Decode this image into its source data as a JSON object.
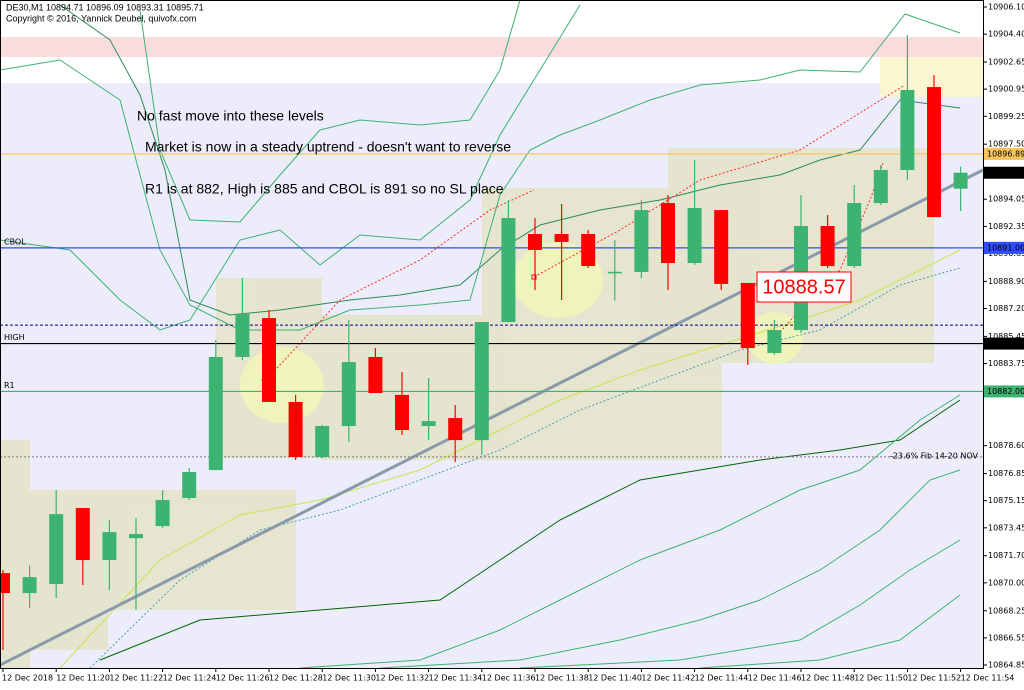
{
  "chart_data": {
    "type": "candlestick",
    "title": "DE30,M1  10894.71 10896.09 10893.31 10895.71",
    "subtitle": "Copyright © 2016, Yannick Deubel, quivofx.com",
    "annotations": [
      "No fast move into these levels",
      "Market is now in a steady uptrend - doesn't want to reverse",
      "R1 is at 882, High is 885 and CBOL is 891 so no SL place"
    ],
    "price_box": {
      "value": 10888.57,
      "label": "10888.57"
    },
    "categories": [
      "12 Dec 2018",
      null,
      "12 Dec 11:20",
      null,
      "12 Dec 11:22",
      null,
      "12 Dec 11:24",
      null,
      "12 Dec 11:26",
      null,
      "12 Dec 11:28",
      null,
      "12 Dec 11:30",
      null,
      "12 Dec 11:32",
      null,
      "12 Dec 11:34",
      null,
      "12 Dec 11:36",
      null,
      "12 Dec 11:38",
      null,
      "12 Dec 11:40",
      null,
      "12 Dec 11:42",
      null,
      "12 Dec 11:44",
      null,
      "12 Dec 11:46",
      null,
      "12 Dec 11:48",
      null,
      "12 Dec 11:50",
      null,
      "12 Dec 11:52",
      null,
      "12 Dec 11:54"
    ],
    "open": [
      10870.61,
      10869.36,
      10869.93,
      10874.69,
      10871.43,
      10872.8,
      10873.56,
      10875.32,
      10877.07,
      10884.16,
      10886.6,
      10881.34,
      10877.89,
      10879.83,
      10884.16,
      10881.78,
      10879.83,
      10880.33,
      10878.95,
      10886.35,
      10891.87,
      10891.87,
      10891.87,
      10889.4,
      10889.49,
      10893.81,
      10890.05,
      10893.37,
      10888.8,
      10884.41,
      10885.85,
      10892.37,
      10889.86,
      10893.81,
      10895.88,
      10901.08,
      10894.71
    ],
    "high": [
      10870.8,
      10871.1,
      10875.82,
      10874.69,
      10873.94,
      10874.06,
      10875.82,
      10877.2,
      10885.22,
      10889.11,
      10887.1,
      10881.78,
      10879.9,
      10886.48,
      10884.72,
      10883.22,
      10882.84,
      10881.15,
      10886.35,
      10893.99,
      10892.87,
      10893.75,
      10892.12,
      10891.5,
      10893.99,
      10894.31,
      10896.51,
      10893.37,
      10888.8,
      10886.48,
      10894.31,
      10893.06,
      10894.94,
      10896.19,
      10904.34,
      10901.83,
      10896.09
    ],
    "low": [
      10865.79,
      10868.42,
      10869.05,
      10869.86,
      10869.55,
      10868.3,
      10873.44,
      10875.19,
      10877.07,
      10883.97,
      10881.34,
      10877.7,
      10877.8,
      10878.83,
      10881.9,
      10879.27,
      10878.95,
      10877.57,
      10878.01,
      10886.35,
      10888.36,
      10887.73,
      10889.74,
      10887.7,
      10889.11,
      10888.36,
      10889.93,
      10888.36,
      10883.66,
      10884.28,
      10885.66,
      10889.74,
      10889.74,
      10893.69,
      10895.26,
      10892.93,
      10893.31
    ],
    "close": [
      10869.36,
      10870.36,
      10874.31,
      10871.43,
      10873.18,
      10873.06,
      10875.19,
      10876.95,
      10884.16,
      10886.85,
      10881.34,
      10877.89,
      10879.83,
      10883.84,
      10881.9,
      10879.58,
      10880.14,
      10878.95,
      10886.35,
      10892.87,
      10890.87,
      10891.37,
      10889.86,
      10889.5,
      10893.37,
      10890.05,
      10893.5,
      10888.74,
      10884.72,
      10885.85,
      10892.37,
      10889.86,
      10893.81,
      10895.88,
      10900.9,
      10892.93,
      10895.71
    ],
    "up_color": "#3cb371",
    "down_color": "#ff0000",
    "ylim": [
      10864.85,
      10906.1
    ],
    "yticks": [
      {
        "value": 10864.85,
        "label": "10864.85"
      },
      {
        "value": 10866.55,
        "label": "10866.55"
      },
      {
        "value": 10868.25,
        "label": "10868.25"
      },
      {
        "value": 10870,
        "label": "10870.00"
      },
      {
        "value": 10871.7,
        "label": "10871.70"
      },
      {
        "value": 10873.45,
        "label": "10873.45"
      },
      {
        "value": 10875.15,
        "label": "10875.15"
      },
      {
        "value": 10876.85,
        "label": "10876.85"
      },
      {
        "value": 10878.6,
        "label": "10878.60"
      },
      {
        "value": 10883.75,
        "label": "10883.75"
      },
      {
        "value": 10885.45,
        "label": "10885.45"
      },
      {
        "value": 10887.2,
        "label": "10887.20"
      },
      {
        "value": 10888.9,
        "label": "10888.90"
      },
      {
        "value": 10890.65,
        "label": "10890.65"
      },
      {
        "value": 10892.35,
        "label": "10892.35"
      },
      {
        "value": 10894.05,
        "label": "10894.05"
      },
      {
        "value": 10897.5,
        "label": "10897.50"
      },
      {
        "value": 10899.25,
        "label": "10899.25"
      },
      {
        "value": 10900.95,
        "label": "10900.95"
      },
      {
        "value": 10902.65,
        "label": "10902.65"
      },
      {
        "value": 10904.4,
        "label": "10904.40"
      },
      {
        "value": 10906.1,
        "label": "10906.10"
      }
    ],
    "levels": [
      {
        "name": "CBOL",
        "value": 10891,
        "value_label": "10891.00",
        "color": "#2f4cff",
        "tag_text": "#ffffff"
      },
      {
        "name": "HIGH",
        "value": 10885,
        "value_label": "10885.00",
        "color": "#000000",
        "tag_text": "#ffffff"
      },
      {
        "name": "R1",
        "value": 10882,
        "value_label": "10882.00",
        "color": "#3cb371",
        "tag_text": "#ffffff"
      },
      {
        "value": 10896.89,
        "value_label": "10896.89",
        "color": "#f5c45a",
        "tag_text": "#000000"
      },
      {
        "value": 10886.16,
        "color": "#000080",
        "dashed": true
      }
    ],
    "fib": {
      "value": 10877.9,
      "label": "-23.6%  Fib 14-20  NOV",
      "color": "#7a7a7a"
    },
    "last_price": {
      "value": 10895.71,
      "label": "10895.71"
    }
  }
}
